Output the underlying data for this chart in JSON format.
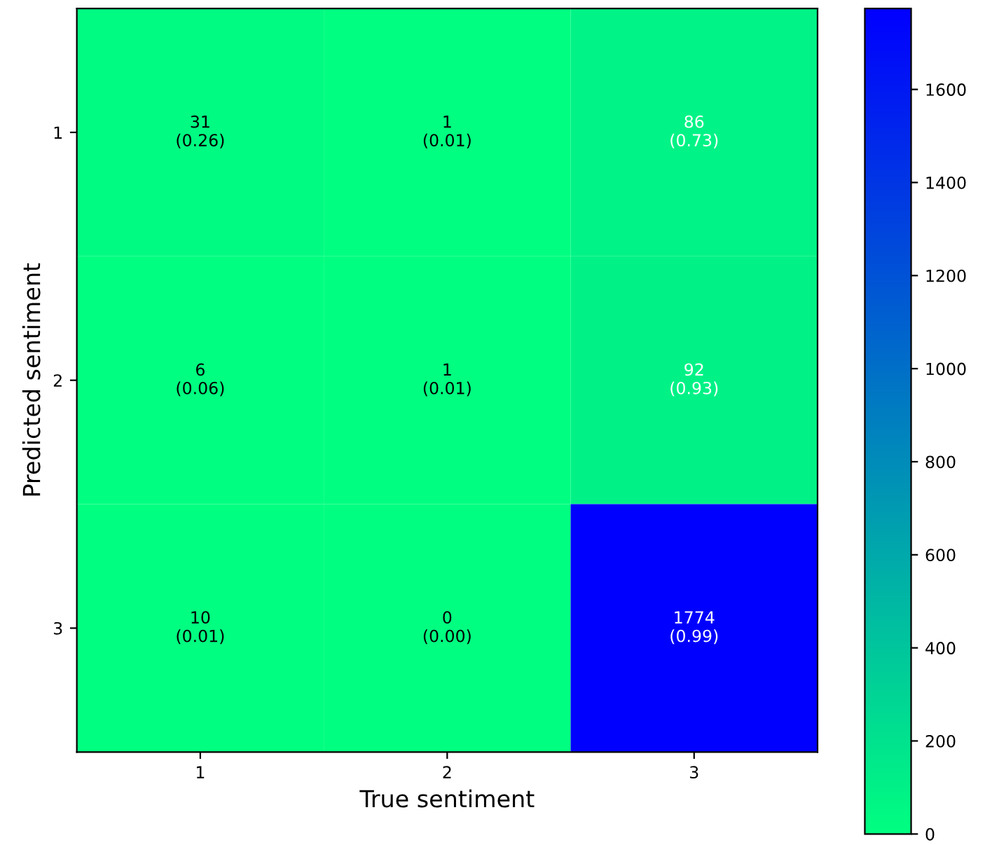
{
  "chart_data": {
    "type": "heatmap",
    "xlabel": "True sentiment",
    "ylabel": "Predicted sentiment",
    "categories": [
      "1",
      "2",
      "3"
    ],
    "y_categories": [
      "1",
      "2",
      "3"
    ],
    "cells": [
      [
        31,
        1,
        86
      ],
      [
        6,
        1,
        92
      ],
      [
        10,
        0,
        1774
      ]
    ],
    "cell_labels": [
      [
        "31\n(0.26)",
        "1\n(0.01)",
        "86\n(0.73)"
      ],
      [
        "6\n(0.06)",
        "1\n(0.01)",
        "92\n(0.93)"
      ],
      [
        "10\n(0.01)",
        "0\n(0.00)",
        "1774\n(0.99)"
      ]
    ],
    "clim": [
      0,
      1774
    ],
    "cticks": [
      0,
      200,
      400,
      600,
      800,
      1000,
      1200,
      1400,
      1600
    ]
  }
}
